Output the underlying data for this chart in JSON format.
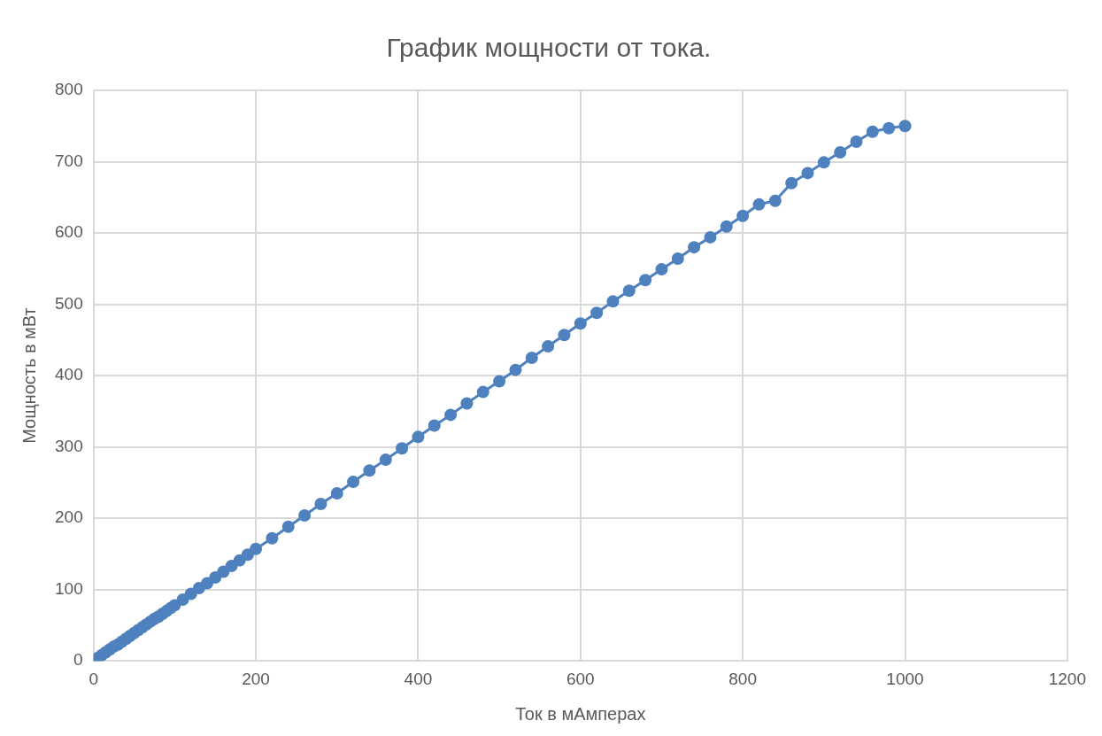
{
  "chart_data": {
    "type": "line",
    "title": "График мощности от тока.",
    "xlabel": "Ток в мАмперах",
    "ylabel": "Мощность в мВт",
    "xlim": [
      0,
      1200
    ],
    "xticks": [
      0,
      200,
      400,
      600,
      800,
      1000,
      1200
    ],
    "ylim": [
      0,
      800
    ],
    "yticks": [
      0,
      100,
      200,
      300,
      400,
      500,
      600,
      700,
      800
    ],
    "grid": true,
    "legend": false,
    "marker": "circle",
    "line_style": "solid",
    "series": [
      {
        "color": "#4e81bd",
        "x": [
          0,
          5,
          10,
          15,
          20,
          25,
          30,
          35,
          40,
          45,
          50,
          55,
          60,
          65,
          70,
          75,
          80,
          85,
          90,
          95,
          100,
          110,
          120,
          130,
          140,
          150,
          160,
          170,
          180,
          190,
          200,
          220,
          240,
          260,
          280,
          300,
          320,
          340,
          360,
          380,
          400,
          420,
          440,
          460,
          480,
          500,
          520,
          540,
          560,
          580,
          600,
          620,
          640,
          660,
          680,
          700,
          720,
          740,
          760,
          780,
          800,
          820,
          840,
          860,
          880,
          900,
          920,
          940,
          960,
          980,
          1000
        ],
        "values": [
          0,
          4,
          8,
          12,
          16,
          20,
          23,
          27,
          31,
          35,
          39,
          43,
          47,
          51,
          55,
          59,
          62,
          66,
          70,
          74,
          78,
          86,
          94,
          102,
          109,
          117,
          125,
          133,
          141,
          149,
          157,
          172,
          188,
          204,
          220,
          235,
          251,
          267,
          282,
          298,
          314,
          330,
          345,
          361,
          377,
          392,
          408,
          425,
          441,
          457,
          473,
          488,
          504,
          519,
          534,
          549,
          564,
          580,
          594,
          609,
          624,
          640,
          645,
          670,
          684,
          699,
          713,
          728,
          742,
          747,
          750
        ]
      }
    ]
  }
}
